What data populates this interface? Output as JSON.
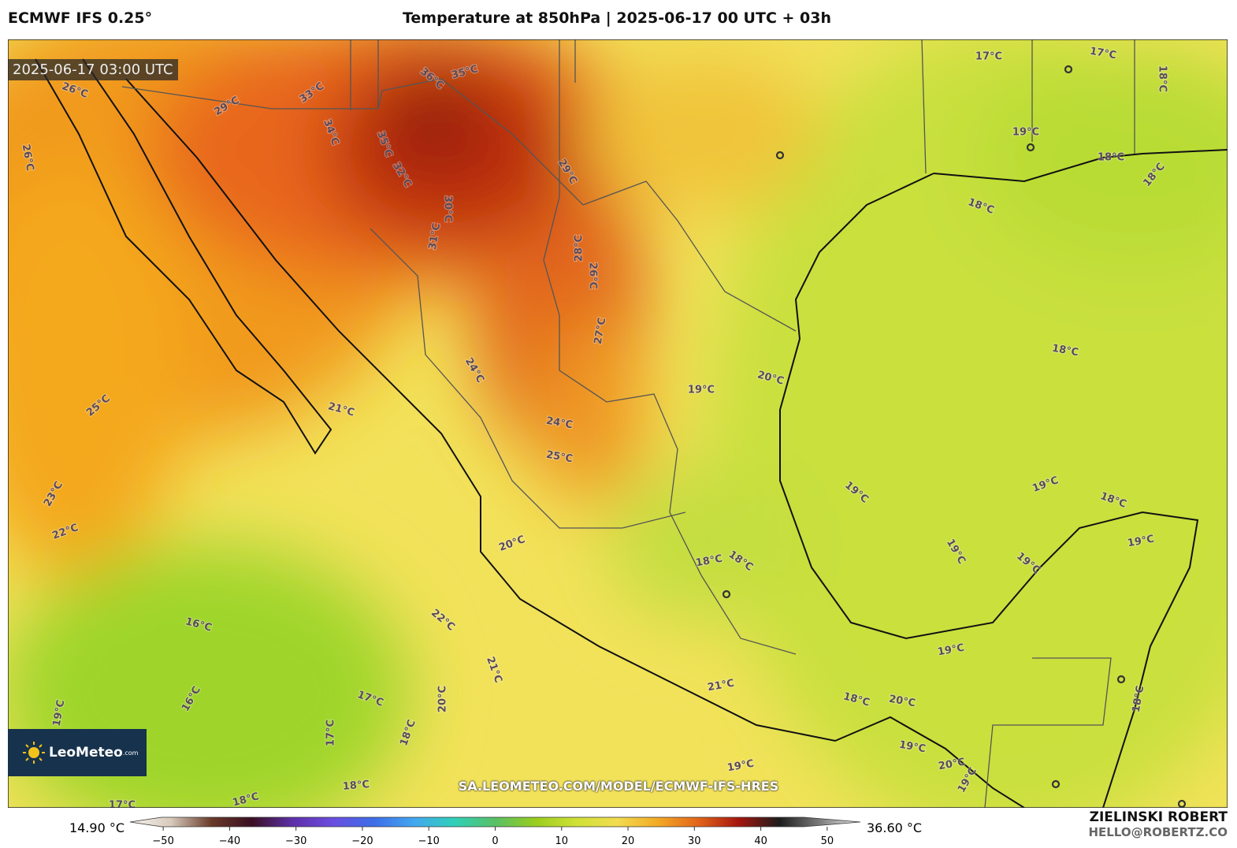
{
  "header": {
    "model": "ECMWF IFS 0.25°",
    "title": "Temperature at 850hPa | 2025-06-17 00 UTC + 03h"
  },
  "map": {
    "timestamp": "2025-06-17 03:00 UTC",
    "contour_labels": [
      "26°C",
      "26°C",
      "29°C",
      "33°C",
      "34°C",
      "36°C",
      "35°C",
      "35°C",
      "32°C",
      "30°C",
      "31°C",
      "29°C",
      "28°C",
      "26°C",
      "27°C",
      "24°C",
      "24°C",
      "25°C",
      "25°C",
      "21°C",
      "19°C",
      "20°C",
      "23°C",
      "22°C",
      "20°C",
      "17°C",
      "17°C",
      "18°C",
      "19°C",
      "18°C",
      "18°C",
      "18°C",
      "18°C",
      "19°C",
      "19°C",
      "18°C",
      "19°C",
      "19°C",
      "19°C",
      "18°C",
      "18°C",
      "16°C",
      "22°C",
      "21°C",
      "16°C",
      "17°C",
      "20°C",
      "17°C",
      "18°C",
      "19°C",
      "21°C",
      "18°C",
      "20°C",
      "19°C",
      "19°C",
      "20°C",
      "19°C",
      "18°C",
      "18°C",
      "17°C",
      "19°C",
      "18°C"
    ],
    "watermark": "SA.LEOMETEO.COM/MODEL/ECMWF-IFS-HRES",
    "logo": {
      "brand": "LeoMeteo",
      "suffix": ".com"
    }
  },
  "colorbar": {
    "min_label": "14.90 °C",
    "max_label": "36.60 °C",
    "range": [
      -55,
      55
    ],
    "ticks": [
      {
        "value": -50,
        "label": "−50"
      },
      {
        "value": -40,
        "label": "−40"
      },
      {
        "value": -30,
        "label": "−30"
      },
      {
        "value": -20,
        "label": "−20"
      },
      {
        "value": -10,
        "label": "−10"
      },
      0,
      10,
      20,
      30,
      40,
      50
    ],
    "colors": [
      "#f4f2ee",
      "#d8cbbd",
      "#6a3b2a",
      "#3a0f22",
      "#5d2fa8",
      "#6b4ee0",
      "#3d6de8",
      "#43a7f0",
      "#2fd0b8",
      "#58c065",
      "#9bcd1e",
      "#cfe136",
      "#f2dc50",
      "#f3aa26",
      "#e2651a",
      "#a5160e",
      "#1c1c1c",
      "#7c7c7c",
      "#f0f0f0"
    ]
  },
  "footer": {
    "author": "ZIELINSKI ROBERT",
    "email": "HELLO@ROBERTZ.CO"
  }
}
